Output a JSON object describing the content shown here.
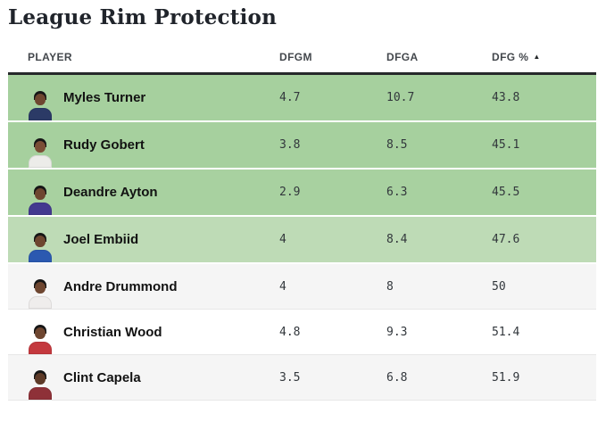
{
  "page": {
    "title": "League Rim Protection"
  },
  "table": {
    "columns": [
      {
        "label": "PLAYER"
      },
      {
        "label": "DFGM"
      },
      {
        "label": "DFGA"
      },
      {
        "label": "DFG %",
        "sort_icon": "▲",
        "sort_dir": "ascending"
      }
    ],
    "rows": [
      {
        "player": "Myles Turner",
        "dfgm": "4.7",
        "dfga": "10.7",
        "dfg_pct": "43.8",
        "row_style": "background:#a6d09e",
        "avatar_style": "--jersey:#2b3a66;--skin:#6e4630"
      },
      {
        "player": "Rudy Gobert",
        "dfgm": "3.8",
        "dfga": "8.5",
        "dfg_pct": "45.1",
        "row_style": "background:#a6d09e",
        "avatar_style": "--jersey:#ecece9;--skin:#7a4e36"
      },
      {
        "player": "Deandre Ayton",
        "dfgm": "2.9",
        "dfga": "6.3",
        "dfg_pct": "45.5",
        "row_style": "background:#a8d1a0",
        "avatar_style": "--jersey:#43398f;--skin:#6e4630"
      },
      {
        "player": "Joel Embiid",
        "dfgm": "4",
        "dfga": "8.4",
        "dfg_pct": "47.6",
        "row_style": "background:#bedbb6",
        "avatar_style": "--jersey:#2b59b0;--skin:#6e4630"
      },
      {
        "player": "Andre Drummond",
        "dfgm": "4",
        "dfga": "8",
        "dfg_pct": "50",
        "row_style": "background:#f5f5f5",
        "avatar_style": "--jersey:#efedec;--skin:#6e4630"
      },
      {
        "player": "Christian Wood",
        "dfgm": "4.8",
        "dfga": "9.3",
        "dfg_pct": "51.4",
        "row_style": "background:#ffffff",
        "avatar_style": "--jersey:#c4393e;--skin:#6e4630"
      },
      {
        "player": "Clint Capela",
        "dfgm": "3.5",
        "dfga": "6.8",
        "dfg_pct": "51.9",
        "row_style": "background:#f5f5f5",
        "avatar_style": "--jersey:#8e3138;--skin:#5d3a28"
      }
    ]
  },
  "colors": {
    "header_border": "#26292b",
    "heat_green_strong": "#a6d09e",
    "heat_green_light": "#bedbb6",
    "neutral_stripe": "#f5f5f5",
    "row_divider": "#e7e7e7"
  }
}
